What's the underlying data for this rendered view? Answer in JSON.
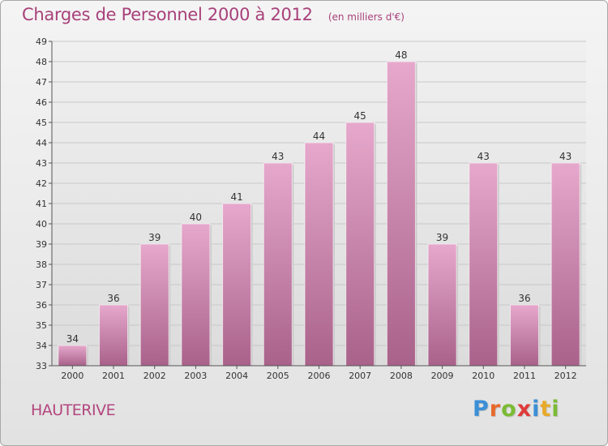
{
  "header": {
    "title": "Charges de Personnel 2000 à 2012",
    "subtitle": "(en milliers d'€)"
  },
  "footer": {
    "town": "HAUTERIVE",
    "logo_letters": [
      "P",
      "r",
      "o",
      "x",
      "i",
      "t",
      "i"
    ],
    "logo_colors": [
      "#3b8fd6",
      "#e8692a",
      "#7bbb35",
      "#e03a3a",
      "#3b8fd6",
      "#e8a92a",
      "#7bbb35"
    ]
  },
  "colors": {
    "bar_top": "#e6a8cc",
    "bar_bottom": "#a9628a",
    "text": "#333333",
    "grid": "#c8c8c8"
  },
  "chart_data": {
    "type": "bar",
    "title": "Charges de Personnel 2000 à 2012",
    "subtitle": "(en milliers d'€)",
    "categories": [
      "2000",
      "2001",
      "2002",
      "2003",
      "2004",
      "2005",
      "2006",
      "2007",
      "2008",
      "2009",
      "2010",
      "2011",
      "2012"
    ],
    "values": [
      34,
      36,
      39,
      40,
      41,
      43,
      44,
      45,
      48,
      39,
      43,
      36,
      43
    ],
    "ylim": [
      33,
      49
    ],
    "yticks": [
      33,
      34,
      35,
      36,
      37,
      38,
      39,
      40,
      41,
      42,
      43,
      44,
      45,
      46,
      47,
      48,
      49
    ],
    "grid": true,
    "legend": "none"
  }
}
